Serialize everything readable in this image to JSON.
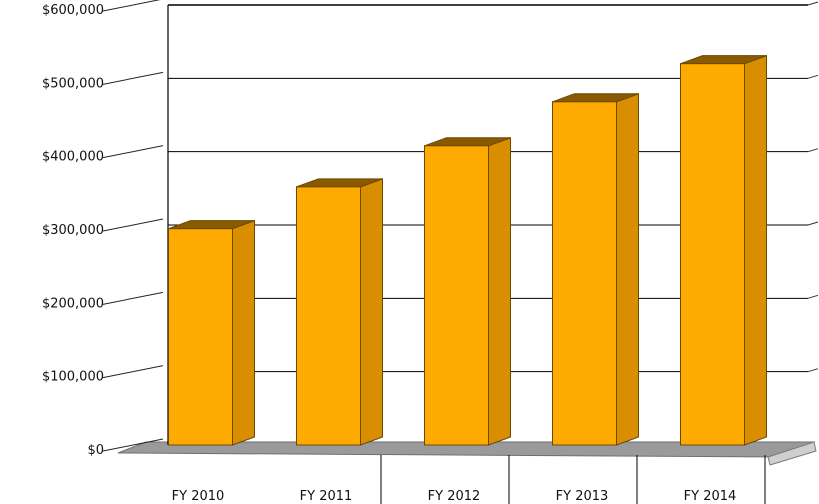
{
  "chart_data": {
    "type": "bar",
    "style": "3d",
    "categories": [
      "FY 2010",
      "FY 2011",
      "FY 2012",
      "FY 2013",
      "FY 2014"
    ],
    "series": [
      {
        "values": [
          295000,
          352000,
          408000,
          468000,
          520000
        ]
      }
    ],
    "ylim": [
      0,
      600000
    ],
    "yticks": [
      0,
      100000,
      200000,
      300000,
      400000,
      500000,
      600000
    ],
    "ytick_labels": [
      "$0",
      "$100,000",
      "$200,000",
      "$300,000",
      "$400,000",
      "$500,000",
      "$600,000"
    ],
    "grid": true,
    "legend": "none",
    "colors": {
      "bar_front": "#FFAA00",
      "bar_side": "#D98E00",
      "bar_top": "#8A5A00",
      "bar_outline": "#6b4a00",
      "floor": "#9a9a9a",
      "grid": "#000000"
    }
  }
}
